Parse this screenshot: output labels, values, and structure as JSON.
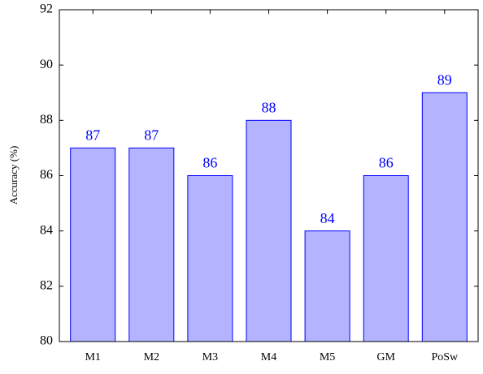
{
  "chart_data": {
    "type": "bar",
    "y_label": "Accuracy (%)",
    "categories": [
      "M1",
      "M2",
      "M3",
      "M4",
      "M5",
      "GM",
      "PoSw"
    ],
    "values": [
      87,
      87,
      86,
      88,
      84,
      86,
      89
    ],
    "color": "#b3b3ff",
    "edge_color": "#0000ff",
    "label_color": "#0000ff",
    "ylim": [
      80,
      92
    ],
    "yticks": [
      80,
      82,
      84,
      86,
      88,
      90,
      92
    ],
    "grid": false
  }
}
